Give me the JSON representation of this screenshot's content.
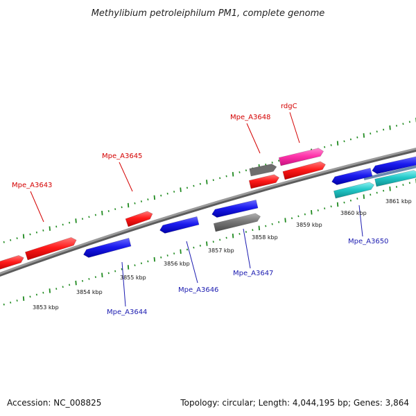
{
  "title": "Methylibium petroleiphilum PM1, complete genome",
  "footer": {
    "accession": "Accession: NC_008825",
    "summary": "Topology: circular; Length: 4,044,195 bp; Genes: 3,864"
  },
  "colors": {
    "forward_gene": "#ff1a1a",
    "reverse_gene": "#1a1aee",
    "pseudo_gene": "#777777",
    "rdgC_gene": "#ff33aa",
    "rna_gene": "#22c8c8",
    "backbone": "#8c8c8c",
    "tick": "#1f8a1f",
    "label_forward": "#d40000",
    "label_reverse": "#1a1ab0"
  },
  "kbp_labels": [
    "3853 kbp",
    "3854 kbp",
    "3855 kbp",
    "3856 kbp",
    "3857 kbp",
    "3858 kbp",
    "3859 kbp",
    "3860 kbp",
    "3861 kbp"
  ],
  "gene_labels": {
    "top": [
      "Mpe_A3643",
      "Mpe_A3645",
      "Mpe_A3648",
      "rdgC"
    ],
    "bottom": [
      "Mpe_A3644",
      "Mpe_A3646",
      "Mpe_A3647",
      "Mpe_A3650"
    ]
  }
}
